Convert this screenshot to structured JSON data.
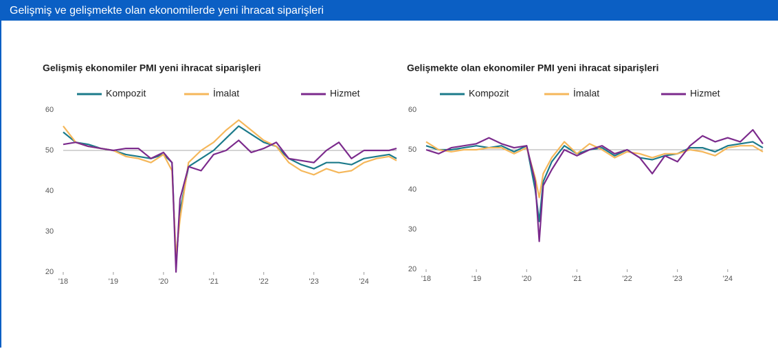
{
  "title": "Gelişmiş ve gelişmekte olan ekonomilerde yeni ihracat siparişleri",
  "chart_data": [
    {
      "type": "line",
      "title": "Gelişmiş ekonomiler PMI yeni ihracat siparişleri",
      "x": [
        2018,
        2018.25,
        2018.5,
        2018.75,
        2019,
        2019.25,
        2019.5,
        2019.75,
        2020,
        2020.17,
        2020.25,
        2020.33,
        2020.5,
        2020.75,
        2021,
        2021.25,
        2021.5,
        2021.75,
        2022,
        2022.25,
        2022.5,
        2022.75,
        2023,
        2023.25,
        2023.5,
        2023.75,
        2024,
        2024.25,
        2024.5,
        2024.65
      ],
      "series": [
        {
          "name": "Kompozit",
          "color": "#1b7a8a",
          "values": [
            54.5,
            52,
            51.5,
            50.5,
            50,
            49,
            48.5,
            48,
            49,
            47,
            22,
            35,
            46,
            48,
            50,
            53,
            56,
            54,
            52,
            51,
            48,
            46.5,
            45.5,
            47,
            47,
            46.5,
            48,
            48.5,
            49,
            48
          ]
        },
        {
          "name": "İmalat",
          "color": "#f5b75a",
          "values": [
            56,
            52,
            51,
            50.5,
            50,
            48.5,
            48,
            47,
            49,
            45,
            24,
            33,
            47,
            50,
            52,
            55,
            57.5,
            55,
            52.5,
            51,
            47,
            45,
            44,
            45.5,
            44.5,
            45,
            47,
            48,
            48.5,
            47.5
          ]
        },
        {
          "name": "Hizmet",
          "color": "#7b2a8c",
          "values": [
            51.5,
            52,
            51,
            50.5,
            50,
            50.5,
            50.5,
            48,
            49.5,
            47,
            20,
            38,
            46,
            45,
            49,
            50,
            52.5,
            49.5,
            50.5,
            52,
            48,
            47.5,
            47,
            50,
            52,
            48,
            50,
            50,
            50,
            50.5
          ]
        }
      ],
      "xlim": [
        2018,
        2024.65
      ],
      "ylim": [
        20,
        60
      ],
      "xticks": [
        {
          "value": 2018,
          "label": "'18"
        },
        {
          "value": 2019,
          "label": "'19"
        },
        {
          "value": 2020,
          "label": "'20"
        },
        {
          "value": 2021,
          "label": "'21"
        },
        {
          "value": 2022,
          "label": "'22"
        },
        {
          "value": 2023,
          "label": "'23"
        },
        {
          "value": 2024,
          "label": "'24"
        }
      ],
      "yticks": [
        20,
        30,
        40,
        50,
        60
      ],
      "reference_line": 50
    },
    {
      "type": "line",
      "title": "Gelişmekte olan ekonomiler PMI yeni ihracat siparişleri",
      "x": [
        2018,
        2018.25,
        2018.5,
        2018.75,
        2019,
        2019.25,
        2019.5,
        2019.75,
        2020,
        2020.17,
        2020.25,
        2020.33,
        2020.5,
        2020.75,
        2021,
        2021.25,
        2021.5,
        2021.75,
        2022,
        2022.25,
        2022.5,
        2022.75,
        2023,
        2023.25,
        2023.5,
        2023.75,
        2024,
        2024.25,
        2024.5,
        2024.7
      ],
      "series": [
        {
          "name": "Kompozit",
          "color": "#1b7a8a",
          "values": [
            51,
            50,
            50,
            50.5,
            51,
            50.5,
            51,
            49.5,
            51,
            40,
            32,
            42,
            47,
            51,
            49,
            50,
            50.5,
            48.5,
            50,
            48,
            47.5,
            48.5,
            49,
            50.5,
            50.5,
            49.5,
            51,
            51.5,
            52,
            50.5
          ]
        },
        {
          "name": "İmalat",
          "color": "#f5b75a",
          "values": [
            52,
            50,
            49.5,
            50,
            50,
            50.5,
            50.5,
            49,
            50.5,
            43,
            38,
            44,
            48,
            52,
            49,
            51.5,
            50,
            48,
            49.5,
            49,
            48,
            49,
            49,
            50,
            49.5,
            48.5,
            50.5,
            51,
            51,
            49.5
          ]
        },
        {
          "name": "Hizmet",
          "color": "#7b2a8c",
          "values": [
            50,
            49,
            50.5,
            51,
            51.5,
            53,
            51.5,
            50.5,
            51,
            42,
            27,
            41,
            45,
            50,
            48.5,
            50,
            51,
            49,
            50,
            48,
            44,
            48.5,
            47,
            51,
            53.5,
            52,
            53,
            52,
            55,
            51.5
          ]
        }
      ],
      "xlim": [
        2018,
        2024.7
      ],
      "ylim": [
        20,
        60
      ],
      "xticks": [
        {
          "value": 2018,
          "label": "'18"
        },
        {
          "value": 2019,
          "label": "'19"
        },
        {
          "value": 2020,
          "label": "'20"
        },
        {
          "value": 2021,
          "label": "'21"
        },
        {
          "value": 2022,
          "label": "'22"
        },
        {
          "value": 2023,
          "label": "'23"
        },
        {
          "value": 2024,
          "label": "'24"
        }
      ],
      "yticks": [
        20,
        30,
        40,
        50,
        60
      ],
      "reference_line": 50
    }
  ]
}
